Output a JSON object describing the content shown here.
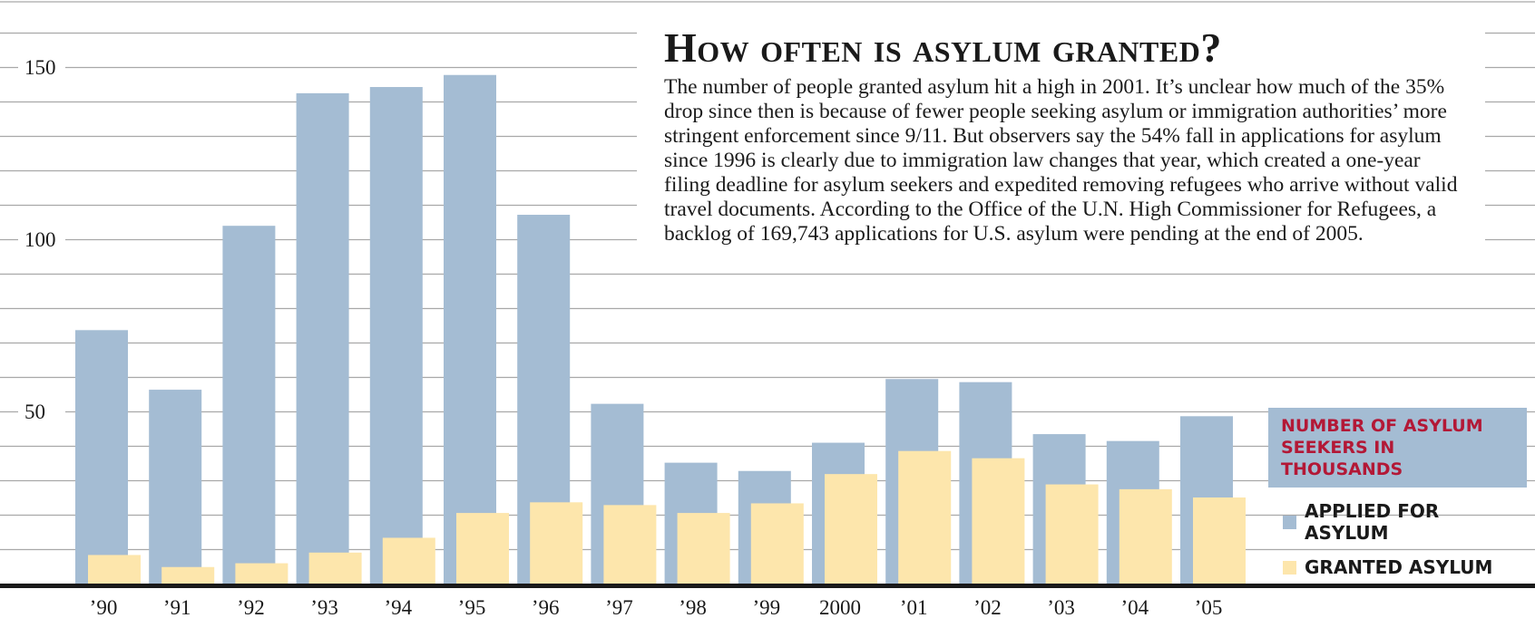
{
  "chart_data": {
    "type": "bar",
    "title": "How often is asylum granted?",
    "subtitle": "The number of people granted asylum hit a high in 2001. It’s unclear how much of the 35% drop since then is because of fewer people seeking asylum or immigration authorities’ more stringent enforcement since 9/11. But observers say the 54% fall in applications for asylum since 1996 is clearly due to immigration law changes that year, which created a one-year filing deadline for asylum seekers and expedited removing refugees who arrive without valid travel documents. According to the Office of the U.N. High Commissioner for Refugees, a backlog of 169,743 applications for U.S. asylum were pending at the end of 2005.",
    "legend_title": "NUMBER OF ASYLUM SEEKERS IN THOUSANDS",
    "categories": [
      "’90",
      "’91",
      "’92",
      "’93",
      "’94",
      "’95",
      "’96",
      "’97",
      "’98",
      "’99",
      "2000",
      "’01",
      "’02",
      "’03",
      "’04",
      "’05"
    ],
    "series": [
      {
        "name": "APPLIED FOR ASYLUM",
        "color": "#a4bcd3",
        "values": [
          73.6,
          56.3,
          103.9,
          142.4,
          144.2,
          147.7,
          107.1,
          52.2,
          35.1,
          32.7,
          40.9,
          59.4,
          58.5,
          43.4,
          41.4,
          48.6
        ]
      },
      {
        "name": "GRANTED ASYLUM",
        "color": "#fde6ac",
        "values": [
          8.3,
          4.8,
          5.9,
          9.0,
          13.3,
          20.5,
          23.6,
          22.8,
          20.5,
          23.3,
          31.8,
          38.5,
          36.4,
          28.8,
          27.4,
          25.0
        ]
      }
    ],
    "ylim": [
      0,
      160
    ],
    "yticks": [
      50,
      100,
      150
    ],
    "grid": true,
    "legend_position": "right"
  }
}
